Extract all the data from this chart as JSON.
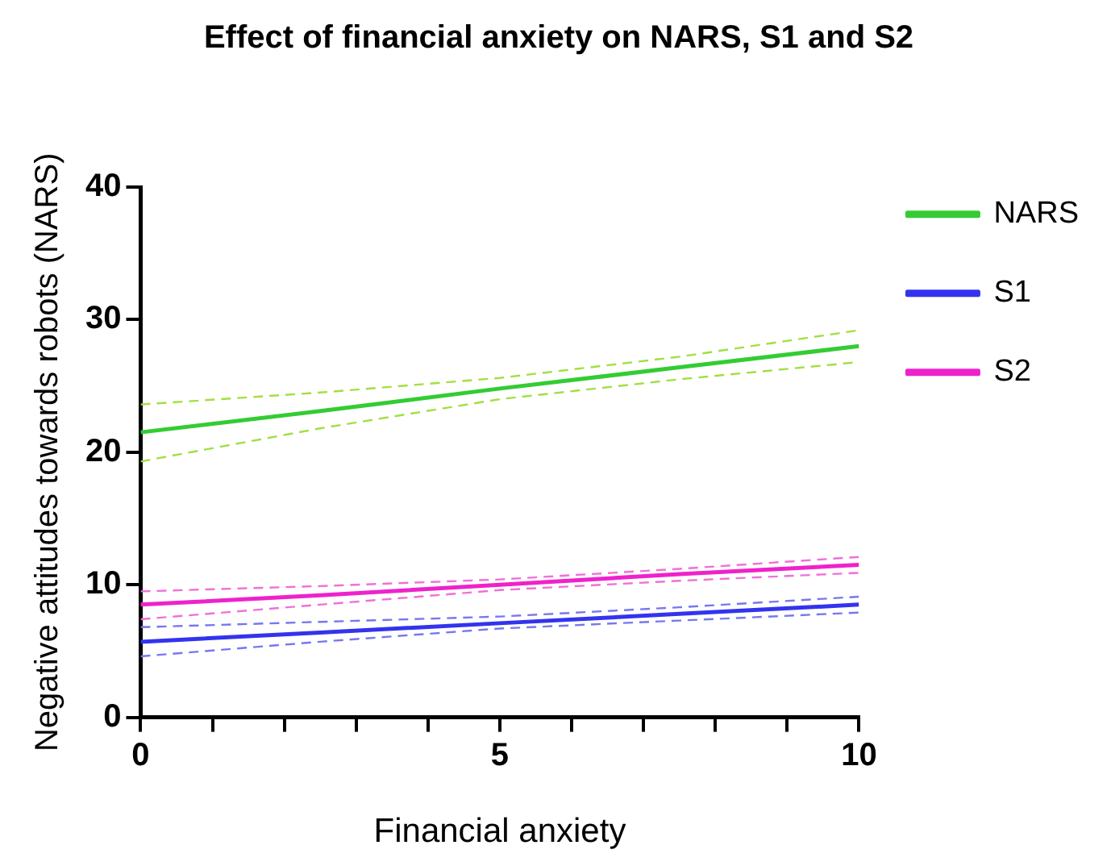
{
  "chart_data": {
    "type": "line",
    "title": "Effect of financial anxiety on NARS, S1 and S2",
    "xlabel": "Financial anxiety",
    "ylabel": "Negative attitudes towards robots (NARS)",
    "x": [
      0,
      2.5,
      5,
      7.5,
      10
    ],
    "series": [
      {
        "name": "NARS",
        "color": "#33cc33",
        "values": [
          21.5,
          23.1,
          24.8,
          26.4,
          28.0
        ]
      },
      {
        "color": "#a0e040",
        "line_style": "dashed",
        "values": [
          19.3,
          21.8,
          24.0,
          25.5,
          26.8
        ]
      },
      {
        "color": "#a0e040",
        "line_style": "dashed",
        "values": [
          23.6,
          24.5,
          25.6,
          27.2,
          29.2
        ]
      },
      {
        "name": "S1",
        "color": "#3333ee",
        "values": [
          5.7,
          6.4,
          7.1,
          7.8,
          8.5
        ]
      },
      {
        "color": "#7777f0",
        "line_style": "dashed",
        "values": [
          4.6,
          5.7,
          6.7,
          7.3,
          7.9
        ]
      },
      {
        "color": "#7777f0",
        "line_style": "dashed",
        "values": [
          6.8,
          7.2,
          7.6,
          8.3,
          9.1
        ]
      },
      {
        "name": "S2",
        "color": "#ee22cc",
        "values": [
          8.5,
          9.2,
          10.0,
          10.8,
          11.5
        ]
      },
      {
        "color": "#f070d8",
        "line_style": "dashed",
        "values": [
          7.4,
          8.5,
          9.6,
          10.3,
          10.9
        ]
      },
      {
        "color": "#f070d8",
        "line_style": "dashed",
        "values": [
          9.5,
          9.9,
          10.4,
          11.2,
          12.1
        ]
      }
    ],
    "xlim": [
      0,
      10
    ],
    "xticks": [
      0,
      {
        "value": 1,
        "label": null
      },
      {
        "value": 2,
        "label": null
      },
      {
        "value": 3,
        "label": null
      },
      {
        "value": 4,
        "label": null
      },
      5,
      {
        "value": 6,
        "label": null
      },
      {
        "value": 7,
        "label": null
      },
      {
        "value": 8,
        "label": null
      },
      {
        "value": 9,
        "label": null
      },
      10
    ],
    "ylim": [
      0,
      40
    ],
    "yticks": [
      0,
      10,
      20,
      30,
      40
    ],
    "legend": "right"
  }
}
